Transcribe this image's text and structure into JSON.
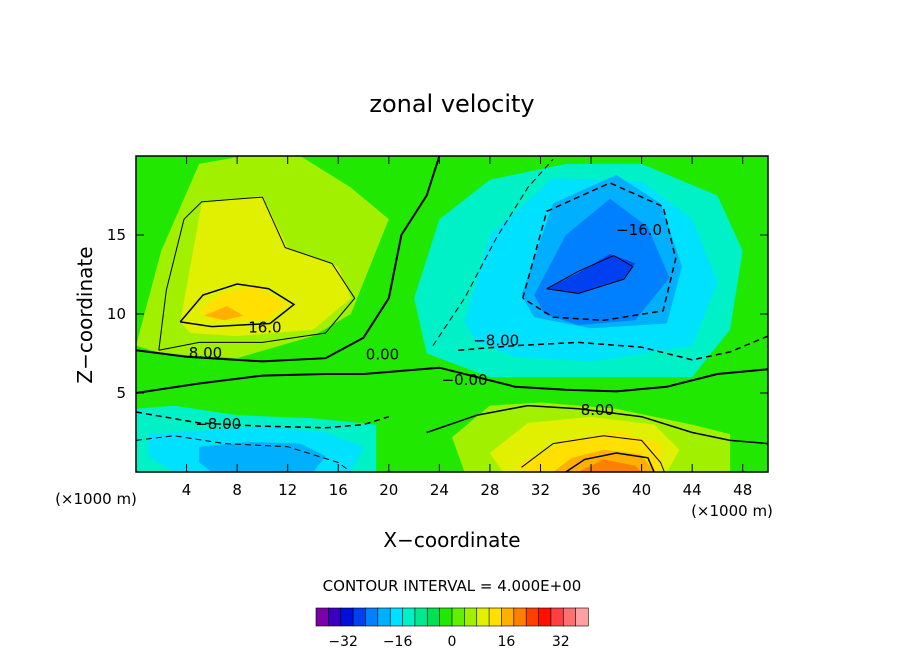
{
  "chart_data": {
    "type": "heatmap",
    "title": "zonal velocity",
    "xlabel": "X−coordinate",
    "ylabel": "Z−coordinate",
    "x_unit_left": "(×1000 m)",
    "x_unit_right": "(×1000 m)",
    "xlim": [
      0,
      50
    ],
    "ylim": [
      0,
      20
    ],
    "x_ticks": [
      4,
      8,
      12,
      16,
      20,
      24,
      28,
      32,
      36,
      40,
      44,
      48
    ],
    "y_ticks": [
      5,
      10,
      15
    ],
    "contour_interval_label": "CONTOUR INTERVAL = 4.000E+00",
    "contour_labels": [
      {
        "text": "16.0",
        "x": 10.2,
        "y": 9.1
      },
      {
        "text": "8.00",
        "x": 5.5,
        "y": 7.5
      },
      {
        "text": "0.00",
        "x": 19.5,
        "y": 7.4
      },
      {
        "text": "−8.00",
        "x": 28.5,
        "y": 8.3
      },
      {
        "text": "−0.00",
        "x": 26.0,
        "y": 5.8
      },
      {
        "text": "8.00",
        "x": 36.5,
        "y": 3.9
      },
      {
        "text": "−8.00",
        "x": 6.5,
        "y": 3.0
      },
      {
        "text": "−16.0",
        "x": 39.8,
        "y": 15.3
      }
    ],
    "features": [
      {
        "name": "positive max (upper left)",
        "x": 7,
        "y": 10,
        "value": 20
      },
      {
        "name": "negative min (upper right)",
        "x": 35,
        "y": 12.5,
        "value": -20
      },
      {
        "name": "positive max (lower right)",
        "x": 38,
        "y": 0.5,
        "value": 20
      },
      {
        "name": "negative min (lower left)",
        "x": 10,
        "y": 1,
        "value": -12
      }
    ],
    "colorbar": {
      "ticks": [
        -32,
        -16,
        0,
        16,
        32
      ],
      "tick_labels": [
        "−32",
        "−16",
        "0",
        "16",
        "32"
      ],
      "min": -40,
      "max": 40,
      "colors": [
        "#7a00a8",
        "#3a00c0",
        "#0010d8",
        "#0040f0",
        "#0080ff",
        "#00b0ff",
        "#00e0ff",
        "#00f0c8",
        "#00e890",
        "#00e050",
        "#20e800",
        "#60f000",
        "#a0f000",
        "#e0f000",
        "#ffe000",
        "#ffb000",
        "#ff8000",
        "#ff4000",
        "#ff1000",
        "#ff4040",
        "#ff7070",
        "#ffa0a0"
      ]
    }
  }
}
